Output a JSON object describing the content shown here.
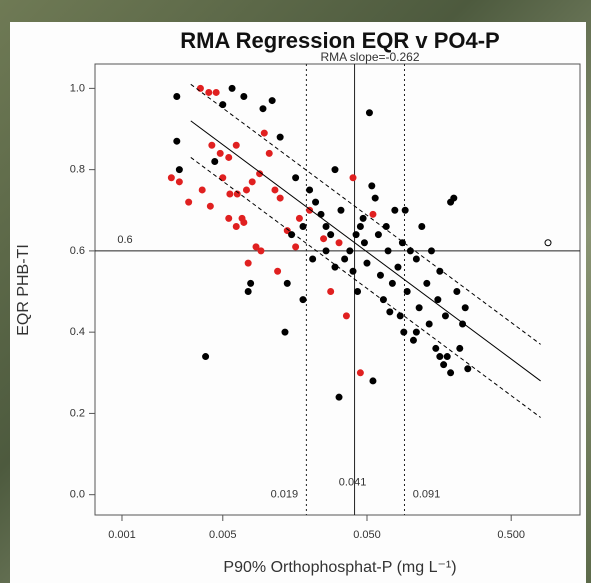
{
  "chart_data": {
    "type": "scatter",
    "title": "RMA Regression EQR v PO4-P",
    "subtitle": "RMA slope=-0.262",
    "x_label": "P90% Orthophosphat-P (mg L⁻¹)",
    "y_label": "EQR PHB-TI",
    "x_log": true,
    "xlim": [
      0.00065,
      1.5
    ],
    "ylim": [
      -0.05,
      1.06
    ],
    "xticks": [
      0.001,
      0.005,
      {
        "value": 0.05,
        "label": "0.050"
      },
      {
        "value": 0.5,
        "label": "0.500"
      }
    ],
    "yticks": [
      {
        "value": 0,
        "label": "0.0"
      },
      0.2,
      0.4,
      0.6,
      0.8,
      {
        "value": 1,
        "label": "1.0"
      }
    ],
    "hlines": [
      {
        "value": 0.6,
        "label": "0.6",
        "style": "solid"
      }
    ],
    "vlines": [
      {
        "value": 0.019,
        "label": "0.019",
        "style": "dotted"
      },
      {
        "value": 0.041,
        "label": "0.041",
        "style": "solid"
      },
      {
        "value": 0.091,
        "label": "0.091",
        "style": "dotted"
      }
    ],
    "regression": {
      "x": [
        0.003,
        0.8
      ],
      "y": [
        0.92,
        0.28
      ],
      "color": "#000000"
    },
    "bands": [
      {
        "x": [
          0.003,
          0.8
        ],
        "y": [
          1.01,
          0.37
        ],
        "color": "#000000"
      },
      {
        "x": [
          0.003,
          0.8
        ],
        "y": [
          0.83,
          0.19
        ],
        "color": "#000000"
      }
    ],
    "series": [
      {
        "color": "#e02020",
        "x": [
          0.0022,
          0.0025,
          0.0029,
          0.0035,
          0.004,
          0.0045,
          0.0042,
          0.0048,
          0.0055,
          0.0062,
          0.0036,
          0.0041,
          0.005,
          0.0056,
          0.0063,
          0.0068,
          0.0073,
          0.008,
          0.009,
          0.0097,
          0.0105,
          0.0115,
          0.0125,
          0.014,
          0.016,
          0.017,
          0.0055,
          0.0062,
          0.007,
          0.0085,
          0.0092,
          0.0075,
          0.028,
          0.036,
          0.045,
          0.04,
          0.055,
          0.025,
          0.012,
          0.02,
          0.032
        ],
        "values": [
          0.78,
          0.77,
          0.72,
          1.0,
          0.99,
          0.99,
          0.86,
          0.84,
          0.83,
          0.86,
          0.75,
          0.71,
          0.78,
          0.74,
          0.74,
          0.68,
          0.75,
          0.77,
          0.79,
          0.89,
          0.84,
          0.75,
          0.73,
          0.65,
          0.61,
          0.68,
          0.68,
          0.66,
          0.67,
          0.61,
          0.6,
          0.57,
          0.5,
          0.44,
          0.3,
          0.78,
          0.69,
          0.63,
          0.55,
          0.7,
          0.62
        ]
      },
      {
        "color": "#000000",
        "x": [
          0.0024,
          0.0024,
          0.0025,
          0.0038,
          0.0044,
          0.005,
          0.0058,
          0.007,
          0.0075,
          0.0078,
          0.0095,
          0.011,
          0.0125,
          0.0135,
          0.014,
          0.016,
          0.018,
          0.02,
          0.022,
          0.024,
          0.026,
          0.028,
          0.03,
          0.032,
          0.035,
          0.038,
          0.04,
          0.043,
          0.045,
          0.048,
          0.05,
          0.052,
          0.054,
          0.055,
          0.057,
          0.06,
          0.062,
          0.065,
          0.068,
          0.07,
          0.075,
          0.078,
          0.082,
          0.085,
          0.088,
          0.092,
          0.095,
          0.1,
          0.105,
          0.11,
          0.115,
          0.12,
          0.13,
          0.135,
          0.14,
          0.15,
          0.155,
          0.16,
          0.17,
          0.175,
          0.18,
          0.19,
          0.2,
          0.21,
          0.22,
          0.23,
          0.24,
          0.25,
          0.19,
          0.16,
          0.11,
          0.09,
          0.072,
          0.026,
          0.03,
          0.033,
          0.015,
          0.018,
          0.021,
          0.042,
          0.047
        ],
        "values": [
          0.98,
          0.87,
          0.8,
          0.34,
          0.82,
          0.96,
          1.0,
          0.98,
          0.5,
          0.52,
          0.95,
          0.97,
          0.88,
          0.4,
          0.52,
          0.78,
          0.48,
          0.75,
          0.72,
          0.69,
          0.66,
          0.64,
          0.8,
          0.24,
          0.58,
          0.6,
          0.55,
          0.5,
          0.66,
          0.62,
          0.57,
          0.94,
          0.76,
          0.28,
          0.73,
          0.64,
          0.54,
          0.48,
          0.66,
          0.6,
          0.52,
          0.7,
          0.56,
          0.44,
          0.62,
          0.7,
          0.5,
          0.6,
          0.38,
          0.58,
          0.46,
          0.66,
          0.52,
          0.42,
          0.6,
          0.36,
          0.48,
          0.55,
          0.32,
          0.44,
          0.34,
          0.72,
          0.73,
          0.5,
          0.36,
          0.42,
          0.46,
          0.31,
          0.3,
          0.34,
          0.4,
          0.4,
          0.45,
          0.6,
          0.56,
          0.7,
          0.64,
          0.66,
          0.58,
          0.64,
          0.68
        ]
      },
      {
        "color": "#000000",
        "open": true,
        "x": [
          0.9
        ],
        "values": [
          0.62
        ]
      }
    ]
  }
}
